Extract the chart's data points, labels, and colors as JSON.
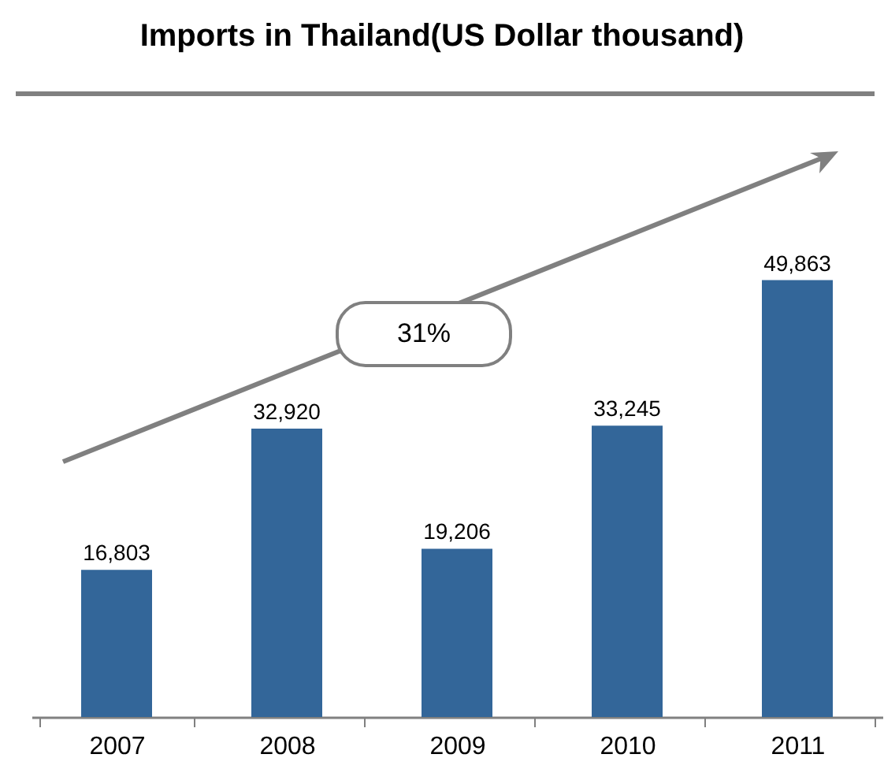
{
  "chart_data": {
    "type": "bar",
    "title": "Imports in Thailand(US Dollar thousand)",
    "categories": [
      "2007",
      "2008",
      "2009",
      "2010",
      "2011"
    ],
    "values": [
      16803,
      32920,
      19206,
      33245,
      49863
    ],
    "color": "#336699",
    "value_labels": [
      "16,803",
      "32,920",
      "19,206",
      "33,245",
      "49,863"
    ],
    "annotations": [
      "31%"
    ]
  }
}
